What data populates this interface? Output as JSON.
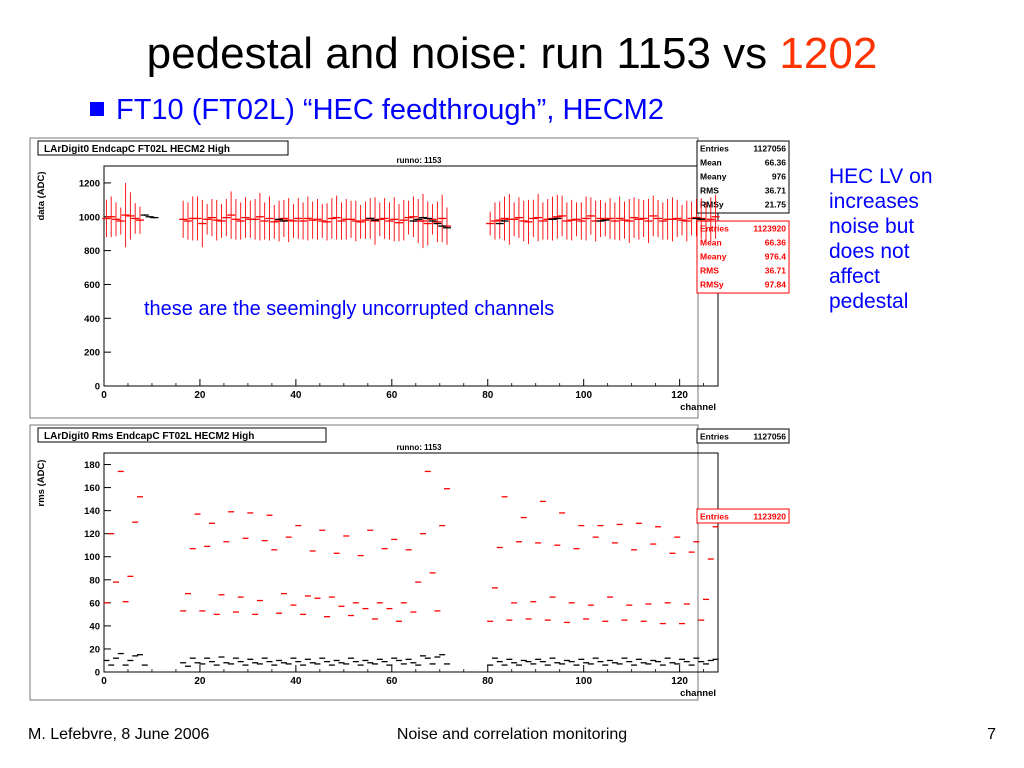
{
  "title": {
    "main": "pedestal and noise: run 1153 vs ",
    "accent": "1202"
  },
  "bullet": "FT10 (FT02L) “HEC feedthrough”, HECM2",
  "side_note": [
    "HEC LV on",
    "increases",
    "noise but",
    "does not",
    "affect",
    "pedestal"
  ],
  "overlay_note": "these are the seemingly uncorrupted channels",
  "footer": {
    "left": "M. Lefebvre, 8 June 2006",
    "center": "Noise and correlation monitoring",
    "right": "7"
  },
  "colors": {
    "run1153": "#000000",
    "run1202": "#ff0000",
    "note": "#0000ff"
  },
  "chart_data": [
    {
      "type": "scatter",
      "title": "LArDigit0 EndcapC FT02L HECM2 High",
      "subtitle": "runno: 1153",
      "xlabel": "channel",
      "ylabel": "data (ADC)",
      "xlim": [
        0,
        128
      ],
      "ylim": [
        0,
        1300
      ],
      "xticks": [
        0,
        20,
        40,
        60,
        80,
        100,
        120
      ],
      "yticks": [
        0,
        200,
        400,
        600,
        800,
        1000,
        1200
      ],
      "stats": [
        {
          "color": "#000000",
          "rows": [
            [
              "Entries",
              "1127056"
            ],
            [
              "Mean",
              "66.36"
            ],
            [
              "Meany",
              "976"
            ],
            [
              "RMS",
              "36.71"
            ],
            [
              "RMSy",
              "21.75"
            ]
          ]
        },
        {
          "color": "#ff0000",
          "rows": [
            [
              "Entries",
              "1123920"
            ],
            [
              "Mean",
              "66.36"
            ],
            [
              "Meany",
              "976.4"
            ],
            [
              "RMS",
              "36.71"
            ],
            [
              "RMSy",
              "97.84"
            ]
          ]
        }
      ],
      "series": [
        {
          "run": "1202",
          "color": "#ff0000",
          "x": [
            0,
            1,
            2,
            3,
            4,
            5,
            6,
            7,
            16,
            17,
            18,
            19,
            20,
            21,
            22,
            23,
            24,
            25,
            26,
            27,
            28,
            29,
            30,
            31,
            32,
            33,
            34,
            35,
            36,
            37,
            38,
            39,
            40,
            41,
            42,
            43,
            44,
            45,
            46,
            47,
            48,
            49,
            50,
            51,
            52,
            53,
            54,
            55,
            56,
            57,
            58,
            59,
            60,
            61,
            62,
            63,
            64,
            65,
            66,
            67,
            68,
            69,
            70,
            71,
            80,
            81,
            82,
            83,
            84,
            85,
            86,
            87,
            88,
            89,
            90,
            91,
            92,
            93,
            94,
            95,
            96,
            97,
            98,
            99,
            100,
            101,
            102,
            103,
            104,
            105,
            106,
            107,
            108,
            109,
            110,
            111,
            112,
            113,
            114,
            115,
            116,
            117,
            118,
            119,
            120,
            121,
            122,
            123,
            124,
            125,
            126,
            127
          ],
          "y": [
            990,
            1000,
            985,
            975,
            1010,
            1005,
            990,
            980,
            985,
            975,
            990,
            990,
            960,
            985,
            995,
            980,
            975,
            995,
            1010,
            985,
            975,
            995,
            985,
            985,
            1000,
            975,
            990,
            970,
            975,
            990,
            980,
            975,
            990,
            975,
            990,
            980,
            985,
            975,
            970,
            990,
            995,
            975,
            985,
            985,
            975,
            970,
            980,
            990,
            975,
            985,
            990,
            975,
            985,
            965,
            980,
            995,
            1000,
            975,
            975,
            960,
            985,
            970,
            990,
            945,
            960,
            975,
            980,
            990,
            985,
            985,
            995,
            975,
            970,
            990,
            995,
            975,
            985,
            990,
            1000,
            1005,
            975,
            980,
            985,
            975,
            990,
            1005,
            975,
            990,
            985,
            990,
            975,
            990,
            980,
            975,
            995,
            985,
            990,
            975,
            1005,
            990,
            975,
            985,
            985,
            990,
            980,
            975,
            990,
            995,
            990,
            975,
            985,
            1000
          ],
          "err": [
            110,
            120,
            100,
            80,
            190,
            140,
            90,
            80,
            110,
            110,
            130,
            130,
            140,
            90,
            110,
            120,
            100,
            110,
            140,
            120,
            110,
            120,
            110,
            120,
            140,
            110,
            130,
            100,
            120,
            110,
            130,
            100,
            120,
            110,
            130,
            110,
            120,
            100,
            110,
            120,
            130,
            110,
            120,
            110,
            120,
            100,
            110,
            120,
            140,
            100,
            120,
            110,
            130,
            110,
            120,
            100,
            120,
            130,
            160,
            130,
            90,
            120,
            140,
            110,
            70,
            110,
            110,
            130,
            150,
            100,
            120,
            120,
            130,
            110,
            140,
            110,
            120,
            130,
            130,
            120,
            110,
            120,
            100,
            110,
            130,
            110,
            120,
            110,
            100,
            120,
            110,
            130,
            110,
            130,
            120,
            120,
            110,
            130,
            120,
            110,
            110,
            120,
            130,
            110,
            90,
            120,
            100,
            110,
            120,
            110,
            130,
            130
          ]
        },
        {
          "run": "1153",
          "color": "#000000",
          "x": [
            8,
            9,
            10,
            36,
            37,
            55,
            56,
            64,
            65,
            66,
            67,
            68,
            69,
            70,
            71,
            82,
            83,
            93,
            94,
            103,
            104,
            123,
            124
          ],
          "y": [
            1010,
            1000,
            995,
            985,
            975,
            990,
            980,
            975,
            985,
            995,
            990,
            975,
            960,
            945,
            935,
            960,
            975,
            985,
            990,
            975,
            980,
            990,
            985
          ],
          "err": [
            5,
            5,
            5,
            5,
            5,
            5,
            5,
            5,
            5,
            5,
            5,
            5,
            5,
            5,
            5,
            5,
            5,
            5,
            5,
            5,
            5,
            5,
            5
          ]
        }
      ]
    },
    {
      "type": "scatter",
      "title": "LArDigit0 Rms EndcapC FT02L HECM2 High",
      "subtitle": "runno: 1153",
      "xlabel": "channel",
      "ylabel": "rms (ADC)",
      "xlim": [
        0,
        128
      ],
      "ylim": [
        0,
        190
      ],
      "xticks": [
        0,
        20,
        40,
        60,
        80,
        100,
        120
      ],
      "yticks": [
        0,
        20,
        40,
        60,
        80,
        100,
        120,
        140,
        160,
        180
      ],
      "stats": [
        {
          "color": "#000000",
          "rows": [
            [
              "Entries",
              "1127056"
            ]
          ]
        },
        {
          "color": "#ff0000",
          "rows": [
            [
              "Entries",
              "1123920"
            ]
          ]
        }
      ],
      "series": [
        {
          "run": "1202",
          "color": "#ff0000",
          "x": [
            0,
            1,
            2,
            3,
            4,
            5,
            6,
            7,
            16,
            17,
            18,
            19,
            20,
            21,
            22,
            23,
            24,
            25,
            26,
            27,
            28,
            29,
            30,
            31,
            32,
            33,
            34,
            35,
            36,
            37,
            38,
            39,
            40,
            41,
            42,
            43,
            44,
            45,
            46,
            47,
            48,
            49,
            50,
            51,
            52,
            53,
            54,
            55,
            56,
            57,
            58,
            59,
            60,
            61,
            62,
            63,
            64,
            65,
            66,
            67,
            68,
            69,
            70,
            71,
            80,
            81,
            82,
            83,
            84,
            85,
            86,
            87,
            88,
            89,
            90,
            91,
            92,
            93,
            94,
            95,
            96,
            97,
            98,
            99,
            100,
            101,
            102,
            103,
            104,
            105,
            106,
            107,
            108,
            109,
            110,
            111,
            112,
            113,
            114,
            115,
            116,
            117,
            118,
            119,
            120,
            121,
            122,
            123,
            124,
            125,
            126,
            127
          ],
          "y": [
            60,
            120,
            78,
            174,
            61,
            83,
            130,
            152,
            53,
            68,
            107,
            137,
            53,
            109,
            129,
            50,
            67,
            113,
            139,
            52,
            65,
            116,
            138,
            50,
            62,
            114,
            136,
            106,
            51,
            68,
            117,
            58,
            127,
            50,
            66,
            105,
            64,
            123,
            48,
            65,
            103,
            57,
            118,
            49,
            60,
            101,
            55,
            123,
            46,
            60,
            107,
            55,
            115,
            44,
            60,
            106,
            52,
            78,
            120,
            174,
            86,
            53,
            127,
            159,
            44,
            73,
            108,
            152,
            45,
            60,
            113,
            134,
            46,
            61,
            112,
            148,
            45,
            65,
            110,
            138,
            43,
            60,
            107,
            127,
            46,
            58,
            117,
            127,
            44,
            65,
            112,
            128,
            45,
            58,
            106,
            129,
            44,
            59,
            111,
            126,
            42,
            60,
            103,
            117,
            42,
            59,
            104,
            113,
            45,
            63,
            98,
            126
          ]
        },
        {
          "run": "1153",
          "color": "#000000",
          "x": [
            0,
            1,
            2,
            3,
            4,
            5,
            6,
            7,
            8,
            16,
            17,
            18,
            19,
            20,
            21,
            22,
            23,
            24,
            25,
            26,
            27,
            28,
            29,
            30,
            31,
            32,
            33,
            34,
            35,
            36,
            37,
            38,
            39,
            40,
            41,
            42,
            43,
            44,
            45,
            46,
            47,
            48,
            49,
            50,
            51,
            52,
            53,
            54,
            55,
            56,
            57,
            58,
            59,
            60,
            61,
            62,
            63,
            64,
            65,
            66,
            67,
            68,
            69,
            70,
            71,
            80,
            81,
            82,
            83,
            84,
            85,
            86,
            87,
            88,
            89,
            90,
            91,
            92,
            93,
            94,
            95,
            96,
            97,
            98,
            99,
            100,
            101,
            102,
            103,
            104,
            105,
            106,
            107,
            108,
            109,
            110,
            111,
            112,
            113,
            114,
            115,
            116,
            117,
            118,
            119,
            120,
            121,
            122,
            123,
            124,
            125,
            126,
            127
          ],
          "y": [
            10,
            6,
            12,
            16,
            6,
            10,
            14,
            15,
            6,
            8,
            5,
            12,
            8,
            7,
            12,
            9,
            6,
            13,
            8,
            7,
            12,
            9,
            6,
            11,
            8,
            7,
            12,
            9,
            6,
            10,
            8,
            7,
            12,
            9,
            6,
            11,
            8,
            7,
            12,
            9,
            6,
            10,
            8,
            7,
            12,
            9,
            6,
            10,
            8,
            7,
            11,
            9,
            6,
            12,
            10,
            7,
            11,
            8,
            6,
            14,
            12,
            7,
            13,
            15,
            7,
            6,
            12,
            9,
            6,
            11,
            8,
            6,
            10,
            9,
            7,
            11,
            9,
            6,
            12,
            8,
            7,
            10,
            9,
            6,
            11,
            8,
            7,
            12,
            9,
            6,
            10,
            8,
            7,
            12,
            9,
            6,
            11,
            8,
            7,
            10,
            9,
            6,
            12,
            8,
            7,
            11,
            9,
            6,
            12,
            9,
            7,
            10,
            11
          ]
        }
      ]
    }
  ]
}
